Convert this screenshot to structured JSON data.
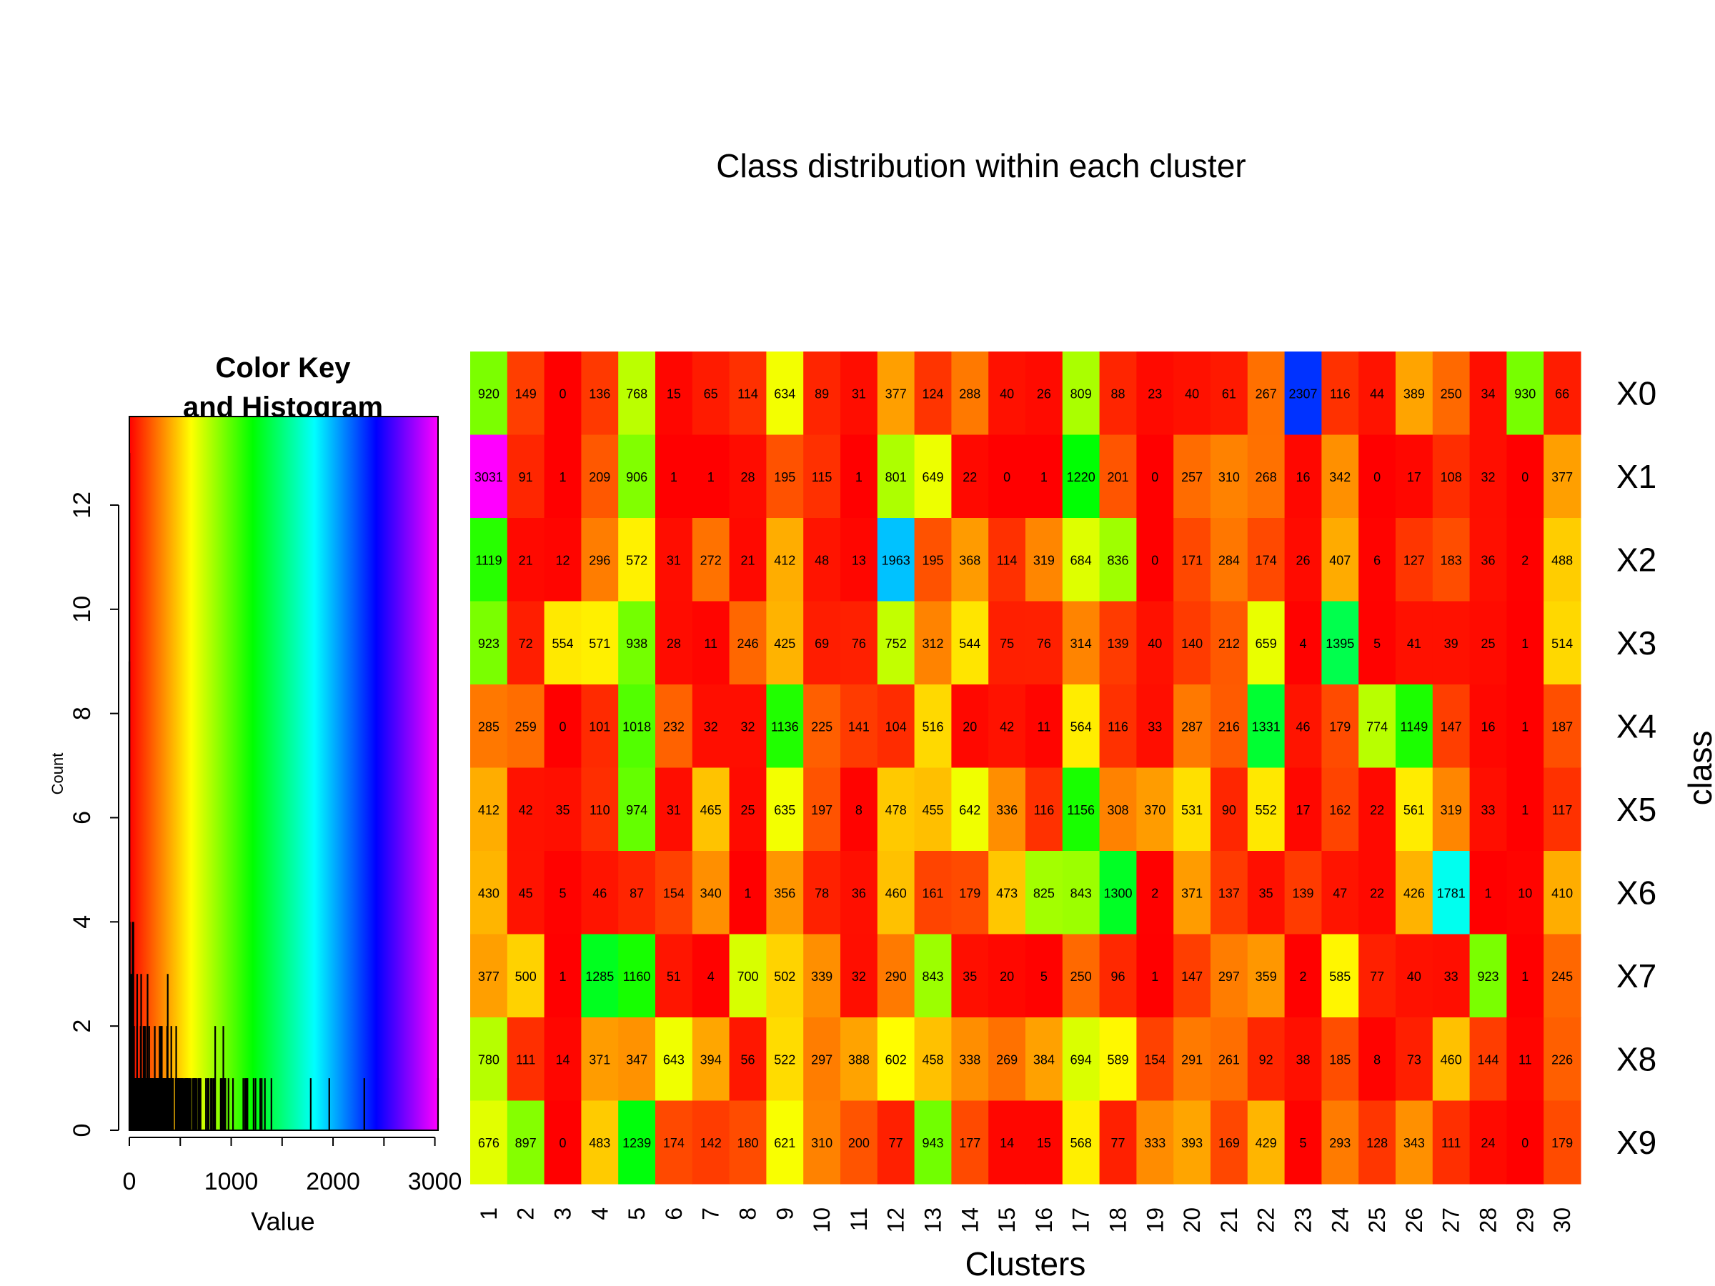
{
  "chart_data": [
    {
      "type": "heatmap",
      "title": "Class distribution within each cluster",
      "xlabel": "Clusters",
      "ylabel": "class",
      "columns": [
        "1",
        "2",
        "3",
        "4",
        "5",
        "6",
        "7",
        "8",
        "9",
        "10",
        "11",
        "12",
        "13",
        "14",
        "15",
        "16",
        "17",
        "18",
        "19",
        "20",
        "21",
        "22",
        "23",
        "24",
        "25",
        "26",
        "27",
        "28",
        "29",
        "30"
      ],
      "rows": [
        "X0",
        "X1",
        "X2",
        "X3",
        "X4",
        "X5",
        "X6",
        "X7",
        "X8",
        "X9"
      ],
      "values": [
        [
          920,
          149,
          0,
          136,
          768,
          15,
          65,
          114,
          634,
          89,
          31,
          377,
          124,
          288,
          40,
          26,
          809,
          88,
          23,
          40,
          61,
          267,
          2307,
          116,
          44,
          389,
          250,
          34,
          930,
          66
        ],
        [
          3031,
          91,
          1,
          209,
          906,
          1,
          1,
          28,
          195,
          115,
          1,
          801,
          649,
          22,
          0,
          1,
          1220,
          201,
          0,
          257,
          310,
          268,
          16,
          342,
          0,
          17,
          108,
          32,
          0,
          377
        ],
        [
          1119,
          21,
          12,
          296,
          572,
          31,
          272,
          21,
          412,
          48,
          13,
          1963,
          195,
          368,
          114,
          319,
          684,
          836,
          0,
          171,
          284,
          174,
          26,
          407,
          6,
          127,
          183,
          36,
          2,
          488
        ],
        [
          923,
          72,
          554,
          571,
          938,
          28,
          11,
          246,
          425,
          69,
          76,
          752,
          312,
          544,
          75,
          76,
          314,
          139,
          40,
          140,
          212,
          659,
          4,
          1395,
          5,
          41,
          39,
          25,
          1,
          514
        ],
        [
          285,
          259,
          0,
          101,
          1018,
          232,
          32,
          32,
          1136,
          225,
          141,
          104,
          516,
          20,
          42,
          11,
          564,
          116,
          33,
          287,
          216,
          1331,
          46,
          179,
          774,
          1149,
          147,
          16,
          1,
          187
        ],
        [
          412,
          42,
          35,
          110,
          974,
          31,
          465,
          25,
          635,
          197,
          8,
          478,
          455,
          642,
          336,
          116,
          1156,
          308,
          370,
          531,
          90,
          552,
          17,
          162,
          22,
          561,
          319,
          33,
          1,
          117
        ],
        [
          430,
          45,
          5,
          46,
          87,
          154,
          340,
          1,
          356,
          78,
          36,
          460,
          161,
          179,
          473,
          825,
          843,
          1300,
          2,
          371,
          137,
          35,
          139,
          47,
          22,
          426,
          1781,
          1,
          10,
          410
        ],
        [
          377,
          500,
          1,
          1285,
          1160,
          51,
          4,
          700,
          502,
          339,
          32,
          290,
          843,
          35,
          20,
          5,
          250,
          96,
          1,
          147,
          297,
          359,
          2,
          585,
          77,
          40,
          33,
          923,
          1,
          245
        ],
        [
          780,
          111,
          14,
          371,
          347,
          643,
          394,
          56,
          522,
          297,
          388,
          602,
          458,
          338,
          269,
          384,
          694,
          589,
          154,
          291,
          261,
          92,
          38,
          185,
          8,
          73,
          460,
          144,
          11,
          226
        ],
        [
          676,
          897,
          0,
          483,
          1239,
          174,
          142,
          180,
          621,
          310,
          200,
          77,
          943,
          177,
          14,
          15,
          568,
          77,
          333,
          393,
          169,
          429,
          5,
          293,
          128,
          343,
          111,
          24,
          0,
          179
        ]
      ],
      "color_scale": "rainbow (red → yellow → green → cyan → blue → magenta)",
      "color_range": [
        0,
        3031
      ]
    },
    {
      "type": "bar",
      "title": "Color Key\nand Histogram",
      "title_lines": [
        "Color Key",
        "and Histogram"
      ],
      "xlabel": "Value",
      "ylabel": "Count",
      "xticks": [
        "0",
        "1000",
        "2000",
        "3000"
      ],
      "yticks": [
        "0",
        "2",
        "4",
        "6",
        "8",
        "10",
        "12"
      ],
      "xlim": [
        0,
        3031
      ],
      "ylim": [
        0,
        13.7
      ]
    }
  ]
}
